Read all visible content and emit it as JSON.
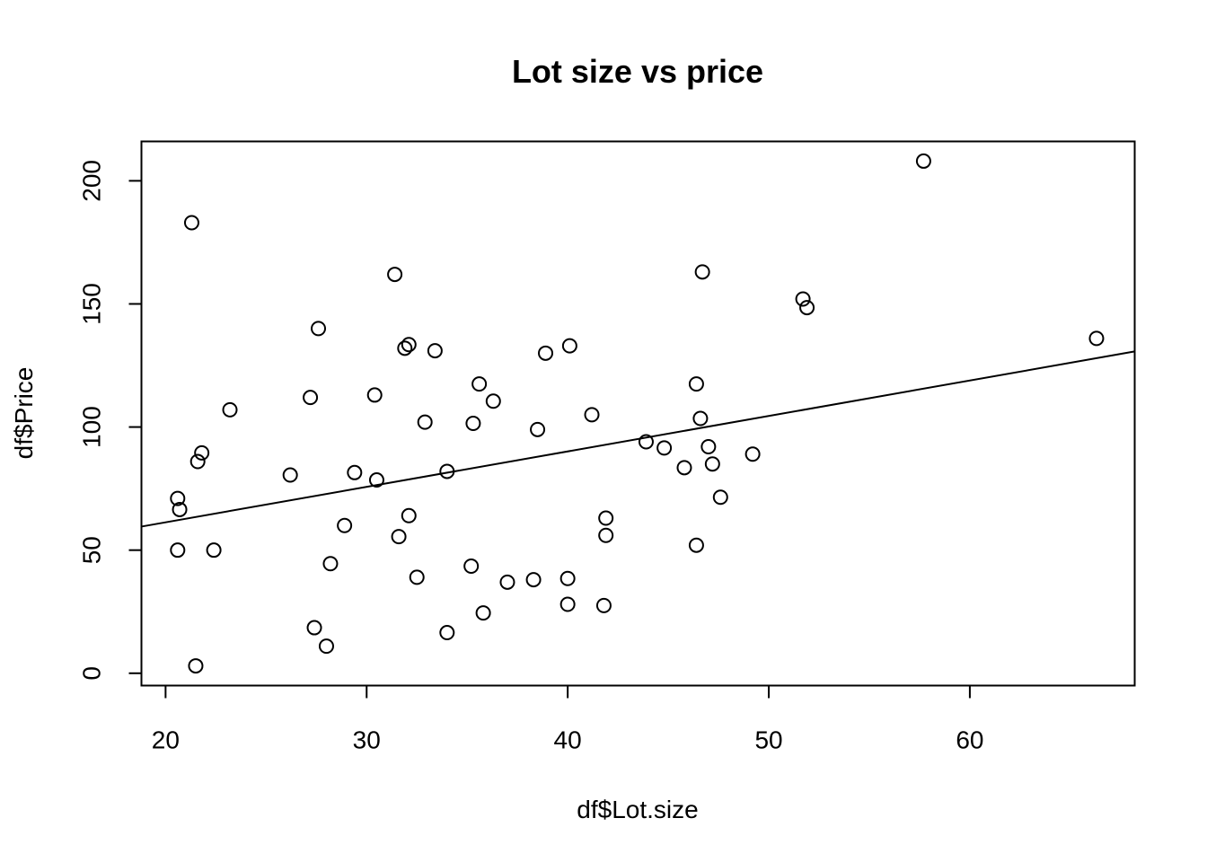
{
  "chart_data": {
    "type": "scatter",
    "title": "Lot size vs price",
    "xlabel": "df$Lot.size",
    "ylabel": "df$Price",
    "xlim": [
      18.8,
      68.2
    ],
    "ylim": [
      -5,
      216
    ],
    "x_ticks": [
      20,
      30,
      40,
      50,
      60
    ],
    "y_ticks": [
      0,
      50,
      100,
      150,
      200
    ],
    "grid": false,
    "legend": "none",
    "marker": "open-circle",
    "fit_line": {
      "intercept": 32.5,
      "slope": 1.44
    },
    "points": [
      {
        "x": 20.6,
        "y": 50
      },
      {
        "x": 20.6,
        "y": 71
      },
      {
        "x": 20.7,
        "y": 66.5
      },
      {
        "x": 21.3,
        "y": 183
      },
      {
        "x": 21.5,
        "y": 3
      },
      {
        "x": 21.6,
        "y": 86
      },
      {
        "x": 21.8,
        "y": 89.5
      },
      {
        "x": 22.4,
        "y": 50
      },
      {
        "x": 23.2,
        "y": 107
      },
      {
        "x": 26.2,
        "y": 80.5
      },
      {
        "x": 27.2,
        "y": 112
      },
      {
        "x": 27.4,
        "y": 18.5
      },
      {
        "x": 27.6,
        "y": 140
      },
      {
        "x": 28.0,
        "y": 11
      },
      {
        "x": 28.2,
        "y": 44.5
      },
      {
        "x": 28.9,
        "y": 60
      },
      {
        "x": 29.4,
        "y": 81.5
      },
      {
        "x": 30.4,
        "y": 113
      },
      {
        "x": 30.5,
        "y": 78.5
      },
      {
        "x": 31.4,
        "y": 162
      },
      {
        "x": 31.6,
        "y": 55.5
      },
      {
        "x": 31.9,
        "y": 132
      },
      {
        "x": 32.1,
        "y": 133.5
      },
      {
        "x": 32.1,
        "y": 64
      },
      {
        "x": 32.5,
        "y": 39
      },
      {
        "x": 32.9,
        "y": 102
      },
      {
        "x": 33.4,
        "y": 131
      },
      {
        "x": 34.0,
        "y": 82
      },
      {
        "x": 34.0,
        "y": 16.5
      },
      {
        "x": 35.2,
        "y": 43.5
      },
      {
        "x": 35.3,
        "y": 101.5
      },
      {
        "x": 35.6,
        "y": 117.5
      },
      {
        "x": 35.8,
        "y": 24.5
      },
      {
        "x": 36.3,
        "y": 110.5
      },
      {
        "x": 37.0,
        "y": 37
      },
      {
        "x": 38.3,
        "y": 38
      },
      {
        "x": 38.5,
        "y": 99
      },
      {
        "x": 38.9,
        "y": 130
      },
      {
        "x": 40.0,
        "y": 38.5
      },
      {
        "x": 40.0,
        "y": 28
      },
      {
        "x": 40.1,
        "y": 133
      },
      {
        "x": 41.2,
        "y": 105
      },
      {
        "x": 41.8,
        "y": 27.5
      },
      {
        "x": 41.9,
        "y": 63
      },
      {
        "x": 41.9,
        "y": 56
      },
      {
        "x": 43.9,
        "y": 94
      },
      {
        "x": 44.8,
        "y": 91.5
      },
      {
        "x": 45.8,
        "y": 83.5
      },
      {
        "x": 46.4,
        "y": 117.5
      },
      {
        "x": 46.4,
        "y": 52
      },
      {
        "x": 46.6,
        "y": 103.5
      },
      {
        "x": 46.7,
        "y": 163
      },
      {
        "x": 47.0,
        "y": 92
      },
      {
        "x": 47.2,
        "y": 85
      },
      {
        "x": 47.6,
        "y": 71.5
      },
      {
        "x": 49.2,
        "y": 89
      },
      {
        "x": 51.7,
        "y": 152
      },
      {
        "x": 51.9,
        "y": 148.5
      },
      {
        "x": 57.7,
        "y": 208
      },
      {
        "x": 66.3,
        "y": 136
      }
    ]
  }
}
